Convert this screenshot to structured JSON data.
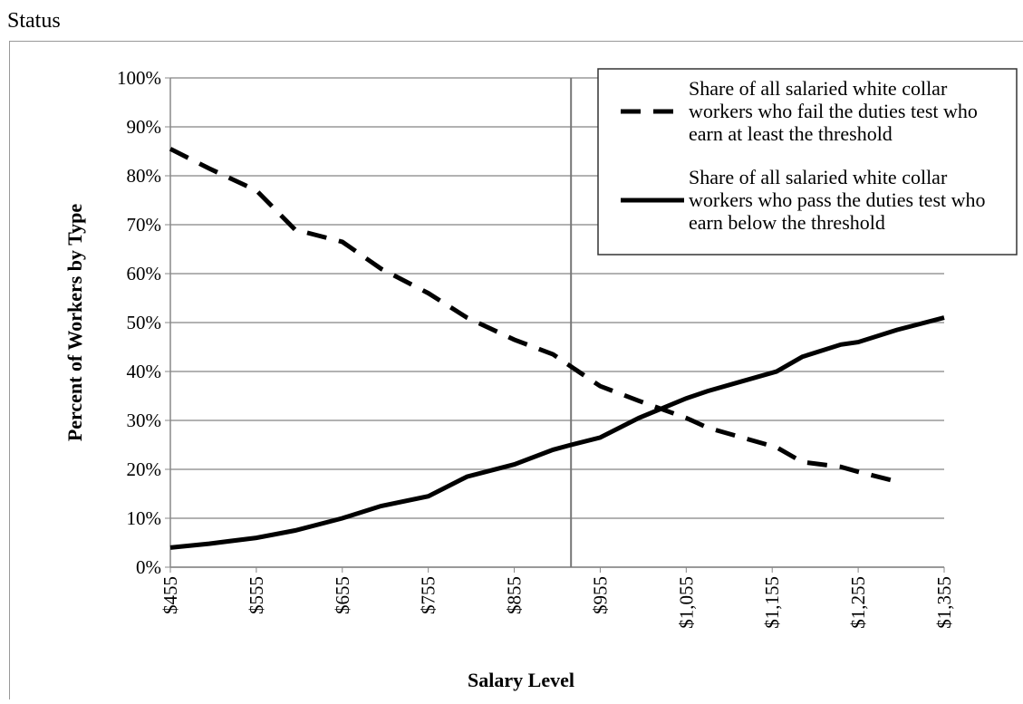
{
  "chart_data": {
    "type": "line",
    "title": "Status",
    "x_label": "Salary Level",
    "y_label": "Percent of Workers by Type",
    "x": [
      455,
      500,
      555,
      600,
      655,
      700,
      755,
      800,
      855,
      900,
      921,
      955,
      1000,
      1055,
      1080,
      1120,
      1160,
      1190,
      1235,
      1255,
      1300,
      1355
    ],
    "series": [
      {
        "name": "Share of all salaried white collar workers who fail the duties test who earn at least the threshold",
        "color": "#000000",
        "style": "dashed",
        "values": [
          85.5,
          81.5,
          77,
          69,
          66.5,
          61,
          56,
          51,
          46.5,
          43.5,
          41,
          37,
          34,
          30.5,
          28.5,
          26.5,
          24.5,
          21.5,
          20.5,
          19.5,
          17.5,
          null
        ]
      },
      {
        "name": "Share of all salaried white collar workers who pass the duties test who earn below the threshold",
        "color": "#000000",
        "style": "solid",
        "values": [
          4,
          4.8,
          6,
          7.5,
          10,
          12.5,
          14.5,
          18.5,
          21,
          24,
          25,
          26.5,
          30.5,
          34.5,
          36,
          38,
          40,
          43,
          45.5,
          46,
          48.5,
          51
        ]
      }
    ],
    "reference_x": 921,
    "xlim": [
      455,
      1355
    ],
    "xticks": [
      {
        "value": 455,
        "label": "$455"
      },
      {
        "value": 555,
        "label": "$555"
      },
      {
        "value": 655,
        "label": "$655"
      },
      {
        "value": 755,
        "label": "$755"
      },
      {
        "value": 855,
        "label": "$855"
      },
      {
        "value": 955,
        "label": "$955"
      },
      {
        "value": 1055,
        "label": "$1,055"
      },
      {
        "value": 1155,
        "label": "$1,155"
      },
      {
        "value": 1255,
        "label": "$1,255"
      },
      {
        "value": 1355,
        "label": "$1,355"
      }
    ],
    "ylim": [
      0,
      100
    ],
    "yticks": [
      {
        "value": 0,
        "label": "0%"
      },
      {
        "value": 10,
        "label": "10%"
      },
      {
        "value": 20,
        "label": "20%"
      },
      {
        "value": 30,
        "label": "30%"
      },
      {
        "value": 40,
        "label": "40%"
      },
      {
        "value": 50,
        "label": "50%"
      },
      {
        "value": 60,
        "label": "60%"
      },
      {
        "value": 70,
        "label": "70%"
      },
      {
        "value": 80,
        "label": "80%"
      },
      {
        "value": 90,
        "label": "90%"
      },
      {
        "value": 100,
        "label": "100%"
      }
    ],
    "grid": true,
    "legend": "top-right"
  }
}
